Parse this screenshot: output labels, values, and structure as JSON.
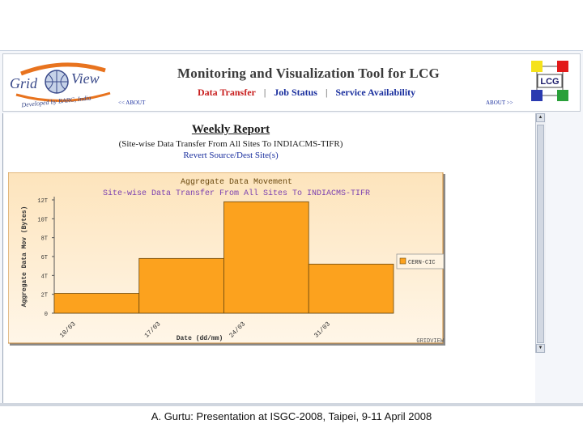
{
  "header": {
    "logo_text": "Grid View",
    "logo_subtext": "Developed by BARC, India",
    "title": "Monitoring and Visualization Tool for LCG",
    "nav": [
      {
        "label": "Data Transfer",
        "active": true
      },
      {
        "label": "Job Status",
        "active": false
      },
      {
        "label": "Service Availability",
        "active": false
      }
    ],
    "separator": "|",
    "about_left": "<< ABOUT",
    "about_right": "ABOUT >>",
    "lcg_logo_text": "LCG"
  },
  "report": {
    "title": "Weekly Report",
    "subtitle": "(Site-wise Data Transfer From All Sites To INDIACMS-TIFR)",
    "revert_link": "Revert Source/Dest Site(s)"
  },
  "chart_data": {
    "type": "bar",
    "title": "Aggregate Data Movement",
    "subtitle": "Site-wise Data Transfer From All Sites To INDIACMS-TIFR",
    "xlabel": "Date (dd/mm)",
    "ylabel": "Aggregate Data Mov (Bytes)",
    "categories": [
      "10/03",
      "17/03",
      "24/03",
      "31/03"
    ],
    "series": [
      {
        "name": "CERN-CIC",
        "values": [
          2.1,
          5.8,
          11.8,
          5.2
        ]
      }
    ],
    "y_ticks": [
      "0",
      "2T",
      "4T",
      "6T",
      "8T",
      "10T",
      "12T"
    ],
    "ylim": [
      0,
      12
    ],
    "watermark": "GRIDVIEW",
    "colors": {
      "bar": "#fca21e",
      "bar_stroke": "#6b4a10",
      "bg_top": "#fde4bc",
      "bg_bottom": "#fff6e8",
      "title": "#6b4a10",
      "subtitle": "#7a3fb0",
      "border": "#c98a3a"
    }
  },
  "footer": {
    "caption": "A. Gurtu: Presentation at ISGC-2008, Taipei, 9-11 April 2008"
  },
  "scrollbar": {
    "up_arrow": "▲",
    "down_arrow": "▼"
  }
}
